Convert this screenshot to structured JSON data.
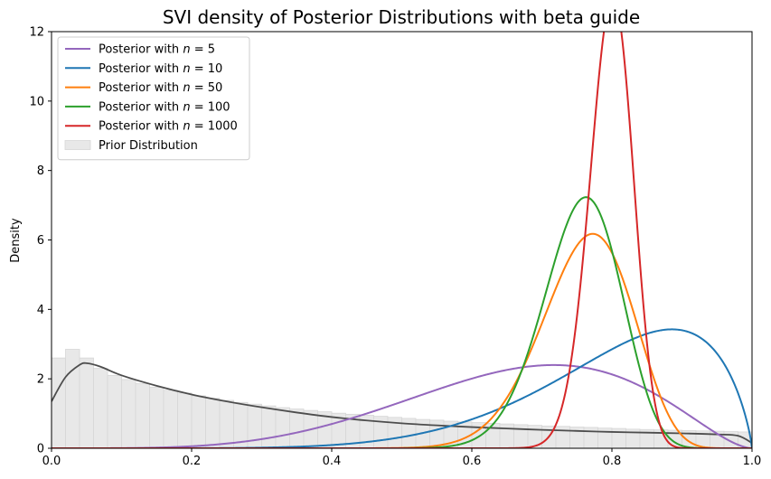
{
  "chart_data": {
    "type": "line",
    "title": "SVI density of Posterior Distributions with beta guide",
    "xlabel": "",
    "ylabel": "Density",
    "xlim": [
      0.0,
      1.0
    ],
    "ylim": [
      0,
      12
    ],
    "x_ticks": [
      "0.0",
      "0.2",
      "0.4",
      "0.6",
      "0.8",
      "1.0"
    ],
    "y_ticks": [
      "0",
      "2",
      "4",
      "6",
      "8",
      "10",
      "12"
    ],
    "grid": false,
    "legend_position": "top-left",
    "series": [
      {
        "name": "Posterior with $n = 5$",
        "legend_text": "Posterior with ",
        "legend_math": "n = 5",
        "color": "#9467bd",
        "beta": [
          5.3,
          2.7
        ]
      },
      {
        "name": "Posterior with $n = 10$",
        "legend_text": "Posterior with ",
        "legend_math": "n = 10",
        "color": "#1f77b4",
        "beta": [
          7.2,
          1.8
        ]
      },
      {
        "name": "Posterior with $n = 50$",
        "legend_text": "Posterior with ",
        "legend_math": "n = 50",
        "color": "#ff7f0e",
        "beta": [
          32.6,
          10.3
        ]
      },
      {
        "name": "Posterior with $n = 100$",
        "legend_text": "Posterior with ",
        "legend_math": "n = 100",
        "color": "#2ca02c",
        "beta": [
          45.4,
          14.8
        ]
      },
      {
        "name": "Posterior with $n = 1000$",
        "legend_text": "Posterior with ",
        "legend_math": "n = 1000",
        "color": "#d62728",
        "beta": [
          136.0,
          34.5
        ]
      }
    ],
    "prior": {
      "name": "Prior Distribution",
      "hist_color": "#e8e8e8",
      "kde_color": "#4d4d4d",
      "bin_width": 0.02,
      "hist_values": [
        2.6,
        2.85,
        2.6,
        2.3,
        2.1,
        1.98,
        1.86,
        1.76,
        1.67,
        1.59,
        1.51,
        1.44,
        1.38,
        1.32,
        1.27,
        1.22,
        1.17,
        1.13,
        1.09,
        1.05,
        1.01,
        0.98,
        0.95,
        0.92,
        0.89,
        0.86,
        0.83,
        0.81,
        0.78,
        0.76,
        0.74,
        0.72,
        0.7,
        0.68,
        0.66,
        0.64,
        0.63,
        0.61,
        0.6,
        0.58,
        0.57,
        0.55,
        0.54,
        0.53,
        0.52,
        0.51,
        0.5,
        0.49,
        0.48,
        0.47
      ],
      "kde_points": [
        [
          0.0,
          1.35
        ],
        [
          0.02,
          2.05
        ],
        [
          0.04,
          2.4
        ],
        [
          0.05,
          2.45
        ],
        [
          0.07,
          2.35
        ],
        [
          0.1,
          2.1
        ],
        [
          0.15,
          1.8
        ],
        [
          0.2,
          1.55
        ],
        [
          0.25,
          1.35
        ],
        [
          0.3,
          1.18
        ],
        [
          0.35,
          1.03
        ],
        [
          0.4,
          0.9
        ],
        [
          0.45,
          0.8
        ],
        [
          0.5,
          0.72
        ],
        [
          0.55,
          0.66
        ],
        [
          0.6,
          0.61
        ],
        [
          0.65,
          0.57
        ],
        [
          0.7,
          0.53
        ],
        [
          0.75,
          0.5
        ],
        [
          0.8,
          0.47
        ],
        [
          0.85,
          0.45
        ],
        [
          0.9,
          0.43
        ],
        [
          0.95,
          0.4
        ],
        [
          0.98,
          0.36
        ],
        [
          1.0,
          0.15
        ]
      ]
    }
  }
}
